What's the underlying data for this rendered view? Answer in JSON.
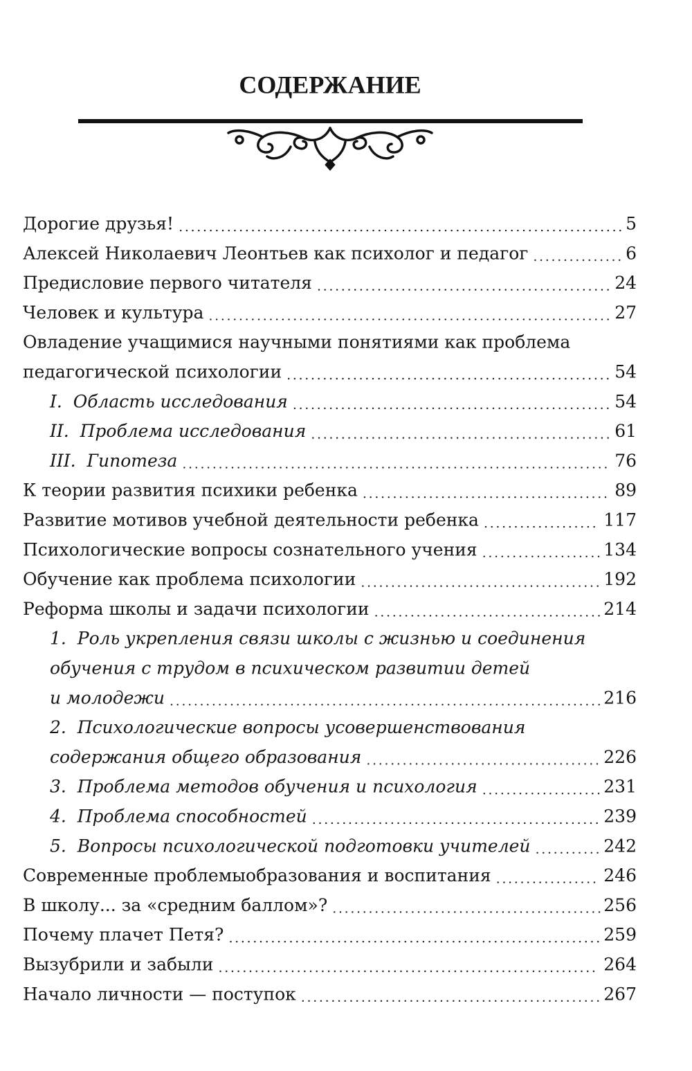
{
  "header": {
    "title": "СОДЕРЖАНИЕ"
  },
  "entries": [
    {
      "lines": [
        "Дорогие друзья!"
      ],
      "page": "5"
    },
    {
      "lines": [
        "Алексей Николаевич Леонтьев как психолог и педагог"
      ],
      "page": "6"
    },
    {
      "lines": [
        "Предисловие первого читателя"
      ],
      "page": "24"
    },
    {
      "lines": [
        "Человек и культура"
      ],
      "page": "27"
    },
    {
      "lines": [
        "Овладение учащимися научными понятиями как проблема",
        "педагогической психологии"
      ],
      "page": "54",
      "subentries": [
        {
          "lines": [
            "I.  Область исследования"
          ],
          "page": "54"
        },
        {
          "lines": [
            "II.  Проблема исследования"
          ],
          "page": "61"
        },
        {
          "lines": [
            "III.  Гипотеза"
          ],
          "page": "76"
        }
      ]
    },
    {
      "lines": [
        "К теории развития психики ребенка"
      ],
      "page": "89"
    },
    {
      "lines": [
        "Развитие мотивов учебной деятельности ребенка"
      ],
      "page": "117"
    },
    {
      "lines": [
        "Психологические вопросы сознательного учения"
      ],
      "page": "134"
    },
    {
      "lines": [
        "Обучение как проблема психологии"
      ],
      "page": "192"
    },
    {
      "lines": [
        "Реформа школы и задачи психологии"
      ],
      "page": "214",
      "subentries": [
        {
          "lines": [
            "1.  Роль укрепления связи школы с жизнью и соединения",
            "обучения с трудом в психическом развитии детей",
            "и молодежи"
          ],
          "page": "216"
        },
        {
          "lines": [
            "2.  Психологические вопросы усовершенствования",
            "содержания общего образования"
          ],
          "page": "226"
        },
        {
          "lines": [
            "3.  Проблема методов обучения и психология"
          ],
          "page": "231"
        },
        {
          "lines": [
            "4.  Проблема способностей"
          ],
          "page": "239"
        },
        {
          "lines": [
            "5.  Вопросы психологической подготовки учителей"
          ],
          "page": "242"
        }
      ]
    },
    {
      "lines": [
        "Современные проблемыобразования и воспитания"
      ],
      "page": "246"
    },
    {
      "lines": [
        "В школу... за «средним баллом»?"
      ],
      "page": "256"
    },
    {
      "lines": [
        "Почему плачет Петя?"
      ],
      "page": "259"
    },
    {
      "lines": [
        "Вызубрили и забыли"
      ],
      "page": "264"
    },
    {
      "lines": [
        "Начало личности — поступок"
      ],
      "page": "267"
    }
  ]
}
